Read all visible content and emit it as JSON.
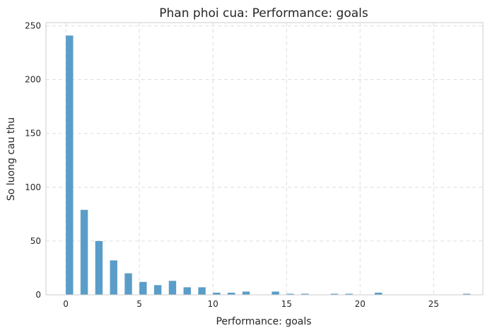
{
  "chart_data": {
    "type": "bar",
    "title": "Phan phoi cua: Performance: goals",
    "xlabel": "Performance: goals",
    "ylabel": "So luong cau thu",
    "xlim": [
      -1.35,
      28.35
    ],
    "ylim": [
      0,
      253
    ],
    "xticks": [
      0,
      5,
      10,
      15,
      20,
      25
    ],
    "yticks": [
      0,
      50,
      100,
      150,
      200,
      250
    ],
    "grid": true,
    "grid_style": "dashed",
    "bar_color": "#5a9dc8",
    "bin_width": 0.5,
    "x": [
      0,
      1,
      2,
      3,
      4,
      5,
      6,
      7,
      8,
      9,
      10,
      11,
      12,
      14,
      15,
      16,
      18,
      19,
      21,
      27
    ],
    "values": [
      241,
      79,
      50,
      32,
      20,
      12,
      9,
      13,
      7,
      7,
      2,
      2,
      3,
      3,
      1,
      1,
      1,
      1,
      2,
      1
    ]
  }
}
